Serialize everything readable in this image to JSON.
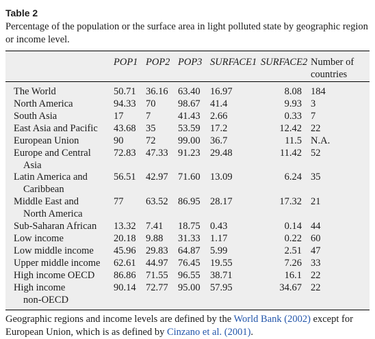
{
  "table": {
    "label": "Table 2",
    "caption": "Percentage of the population or the surface area in light polluted state by geographic region or income level.",
    "columns": [
      "POP1",
      "POP2",
      "POP3",
      "SURFACE1",
      "SURFACE2",
      "Number of",
      "countries"
    ],
    "rows": [
      {
        "name": "The World",
        "name2": "",
        "pop1": "50.71",
        "pop2": "36.16",
        "pop3": "63.40",
        "s1": "16.97",
        "s2": "8.08",
        "n": "184"
      },
      {
        "name": "North America",
        "name2": "",
        "pop1": "94.33",
        "pop2": "70",
        "pop3": "98.67",
        "s1": "41.4",
        "s2": "9.93",
        "n": "3"
      },
      {
        "name": "South Asia",
        "name2": "",
        "pop1": "17",
        "pop2": "7",
        "pop3": "41.43",
        "s1": "2.66",
        "s2": "0.33",
        "n": "7"
      },
      {
        "name": "East Asia and Pacific",
        "name2": "",
        "pop1": "43.68",
        "pop2": "35",
        "pop3": "53.59",
        "s1": "17.2",
        "s2": "12.42",
        "n": "22"
      },
      {
        "name": "European Union",
        "name2": "",
        "pop1": "90",
        "pop2": "72",
        "pop3": "99.00",
        "s1": "36.7",
        "s2": "11.5",
        "n": "N.A."
      },
      {
        "name": "Europe and Central",
        "name2": "Asia",
        "pop1": "72.83",
        "pop2": "47.33",
        "pop3": "91.23",
        "s1": "29.48",
        "s2": "11.42",
        "n": "52"
      },
      {
        "name": "Latin America and",
        "name2": "Caribbean",
        "pop1": "56.51",
        "pop2": "42.97",
        "pop3": "71.60",
        "s1": "13.09",
        "s2": "6.24",
        "n": "35"
      },
      {
        "name": "Middle East and",
        "name2": "North America",
        "pop1": "77",
        "pop2": "63.52",
        "pop3": "86.95",
        "s1": "28.17",
        "s2": "17.32",
        "n": "21"
      },
      {
        "name": "Sub-Saharan African",
        "name2": "",
        "pop1": "13.32",
        "pop2": "7.41",
        "pop3": "18.75",
        "s1": "0.43",
        "s2": "0.14",
        "n": "44"
      },
      {
        "name": "Low income",
        "name2": "",
        "pop1": "20.18",
        "pop2": "9.88",
        "pop3": "31.33",
        "s1": "1.17",
        "s2": "0.22",
        "n": "60"
      },
      {
        "name": "Low middle income",
        "name2": "",
        "pop1": "45.96",
        "pop2": "29.83",
        "pop3": "64.87",
        "s1": "5.99",
        "s2": "2.51",
        "n": "47"
      },
      {
        "name": "Upper middle income",
        "name2": "",
        "pop1": "62.61",
        "pop2": "44.97",
        "pop3": "76.45",
        "s1": "19.55",
        "s2": "7.26",
        "n": "33"
      },
      {
        "name": "High income OECD",
        "name2": "",
        "pop1": "86.86",
        "pop2": "71.55",
        "pop3": "96.55",
        "s1": "38.71",
        "s2": "16.1",
        "n": "22"
      },
      {
        "name": "High income",
        "name2": "non-OECD",
        "pop1": "90.14",
        "pop2": "72.77",
        "pop3": "95.00",
        "s1": "57.95",
        "s2": "34.67",
        "n": "22"
      }
    ],
    "footnote": {
      "part1": "Geographic regions and income levels are defined by the ",
      "link1": "World Bank (2002)",
      "part2": " except for European Union, which is as defined by ",
      "link2": "Cinzano et al. (2001)",
      "part3": "."
    }
  }
}
